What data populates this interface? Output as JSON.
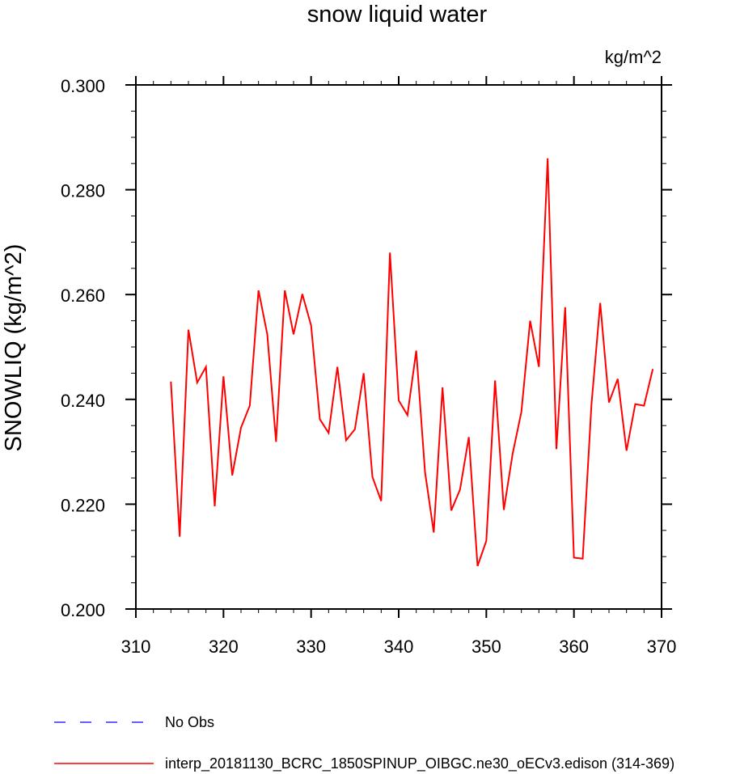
{
  "chart_data": {
    "type": "line",
    "title": "snow liquid water",
    "units": "kg/m^2",
    "ylabel": "SNOWLIQ  (kg/m^2)",
    "xlabel": "",
    "xlim": [
      310,
      370
    ],
    "ylim": [
      0.2,
      0.3
    ],
    "x_ticks": [
      310,
      320,
      330,
      340,
      350,
      360,
      370
    ],
    "x_tick_labels": [
      "310",
      "320",
      "330",
      "340",
      "350",
      "360",
      "370"
    ],
    "y_ticks": [
      0.2,
      0.22,
      0.24,
      0.26,
      0.28,
      0.3
    ],
    "y_tick_labels": [
      "0.200",
      "0.220",
      "0.240",
      "0.260",
      "0.280",
      "0.300"
    ],
    "series": [
      {
        "name": "interp_20181130_BCRC_1850SPINUP_OIBGC.ne30_oECv3.edison (314-369)",
        "color": "#ff0000",
        "style": "solid",
        "x": [
          314,
          315,
          316,
          317,
          318,
          319,
          320,
          321,
          322,
          323,
          324,
          325,
          326,
          327,
          328,
          329,
          330,
          331,
          332,
          333,
          334,
          335,
          336,
          337,
          338,
          339,
          340,
          341,
          342,
          343,
          344,
          345,
          346,
          347,
          348,
          349,
          350,
          351,
          352,
          353,
          354,
          355,
          356,
          357,
          358,
          359,
          360,
          361,
          362,
          363,
          364,
          365,
          366,
          367,
          368,
          369
        ],
        "values": [
          0.2434,
          0.2138,
          0.2533,
          0.2432,
          0.2462,
          0.2196,
          0.2444,
          0.2255,
          0.2346,
          0.2388,
          0.2608,
          0.2524,
          0.2319,
          0.2608,
          0.2524,
          0.2601,
          0.2541,
          0.2362,
          0.2336,
          0.2462,
          0.2322,
          0.2343,
          0.245,
          0.2252,
          0.2206,
          0.268,
          0.2398,
          0.237,
          0.2493,
          0.2262,
          0.2146,
          0.2423,
          0.2188,
          0.2228,
          0.2328,
          0.2082,
          0.213,
          0.2436,
          0.2189,
          0.2296,
          0.2376,
          0.255,
          0.2462,
          0.286,
          0.2305,
          0.2576,
          0.2098,
          0.2096,
          0.239,
          0.2584,
          0.2394,
          0.2439,
          0.2302,
          0.2391,
          0.2388,
          0.2458
        ]
      },
      {
        "name": "No Obs",
        "color": "#0000ff",
        "style": "dashed",
        "x": [],
        "values": []
      }
    ]
  }
}
